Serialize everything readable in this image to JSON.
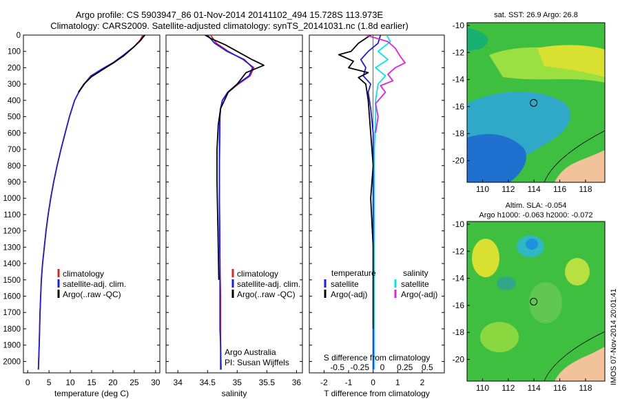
{
  "header": {
    "title_line1": "Argo profile: CS 5903947_86 01-Nov-2014 20141102_494 15.728S 113.973E",
    "title_line2": "Climatology: CARS2009. Satellite-adjusted climatology: synTS_20141031.nc (1.8d earlier)"
  },
  "colors": {
    "climatology": "#dd2222",
    "satellite": "#1a1aee",
    "argo": "#000000",
    "satellite_salinity": "#00e5e5",
    "argo_salinity": "#e020e0",
    "land": "#f2c29a"
  },
  "chart_data": [
    {
      "type": "line",
      "id": "temperature",
      "xlabel": "temperature (deg C)",
      "xlim": [
        -1,
        31
      ],
      "xticks": [
        0,
        5,
        10,
        15,
        20,
        25,
        30
      ],
      "ylim": [
        2070,
        0
      ],
      "yticks": [
        0,
        100,
        200,
        300,
        400,
        500,
        600,
        700,
        800,
        900,
        1000,
        1100,
        1200,
        1300,
        1400,
        1500,
        1600,
        1700,
        1800,
        1900,
        2000
      ],
      "legend": [
        "climatology",
        "satellite-adj. clim.",
        "Argo(..raw -QC)"
      ],
      "legend_placement": "lower-center",
      "series": [
        {
          "name": "climatology",
          "color": "#dd2222",
          "x": [
            27.0,
            26.4,
            25.0,
            22.8,
            20.2,
            17.5,
            14.8,
            13.2,
            12.0,
            11.0,
            9.8,
            8.8,
            7.8,
            6.9,
            6.1,
            5.4,
            4.8,
            4.3,
            3.9,
            3.5,
            3.2,
            2.9,
            2.7,
            2.5
          ],
          "y": [
            0,
            30,
            70,
            120,
            170,
            210,
            250,
            300,
            350,
            400,
            500,
            600,
            700,
            800,
            900,
            1000,
            1100,
            1200,
            1300,
            1400,
            1500,
            1700,
            1900,
            2050
          ]
        },
        {
          "name": "satellite-adj. clim.",
          "color": "#1a1aee",
          "x": [
            27.3,
            26.6,
            25.0,
            22.6,
            20.0,
            17.3,
            14.9,
            13.3,
            12.0,
            11.0,
            9.8,
            8.8,
            7.8,
            6.9,
            6.1,
            5.4,
            4.8,
            4.3,
            3.9,
            3.5,
            3.2,
            2.9,
            2.7,
            2.5
          ],
          "y": [
            0,
            30,
            70,
            120,
            170,
            210,
            250,
            300,
            350,
            400,
            500,
            600,
            700,
            800,
            900,
            1000,
            1100,
            1200,
            1300,
            1400,
            1500,
            1700,
            1900,
            2050
          ]
        },
        {
          "name": "Argo(..raw -QC)",
          "color": "#000000",
          "x": [
            27.5,
            26.2,
            24.6,
            22.4,
            19.8,
            17.4,
            15.0,
            13.2,
            11.9
          ],
          "y": [
            0,
            40,
            80,
            130,
            175,
            215,
            255,
            300,
            350
          ]
        }
      ]
    },
    {
      "type": "line",
      "id": "salinity",
      "xlabel": "salinity",
      "xlim": [
        33.8,
        36.1
      ],
      "xticks": [
        34,
        34.5,
        35,
        35.5,
        36
      ],
      "ylim": [
        2070,
        0
      ],
      "legend": [
        "climatology",
        "satellite-adj. clim.",
        "Argo(..raw -QC)"
      ],
      "legend_placement": "lower-center",
      "annotation": [
        "Argo Australia",
        "PI: Susan Wijffels"
      ],
      "series": [
        {
          "name": "climatology",
          "color": "#dd2222",
          "x": [
            34.55,
            34.65,
            34.85,
            35.1,
            35.28,
            35.22,
            35.02,
            34.85,
            34.75,
            34.72,
            34.71,
            34.71,
            34.7,
            34.7,
            34.71,
            34.71,
            34.72,
            34.72,
            34.72,
            34.73
          ],
          "y": [
            0,
            50,
            100,
            150,
            200,
            250,
            300,
            350,
            400,
            450,
            500,
            600,
            800,
            1000,
            1200,
            1400,
            1600,
            1800,
            1900,
            2050
          ]
        },
        {
          "name": "satellite-adj. clim.",
          "color": "#1a1aee",
          "x": [
            34.5,
            34.62,
            34.83,
            35.12,
            35.26,
            35.2,
            35.0,
            34.84,
            34.75,
            34.72,
            34.71,
            34.7,
            34.7,
            34.7,
            34.7,
            34.71,
            34.71,
            34.71,
            34.72,
            34.72
          ],
          "y": [
            0,
            50,
            100,
            150,
            200,
            250,
            300,
            350,
            400,
            450,
            500,
            600,
            800,
            1000,
            1200,
            1400,
            1600,
            1800,
            1900,
            2050
          ]
        },
        {
          "name": "Argo(..raw -QC)",
          "color": "#000000",
          "x": [
            34.46,
            34.55,
            34.8,
            35.0,
            35.25,
            35.45,
            35.15,
            35.0,
            34.85,
            34.72,
            34.68,
            34.66,
            34.66,
            34.67,
            34.68,
            34.69
          ],
          "y": [
            0,
            20,
            60,
            100,
            150,
            185,
            230,
            300,
            350,
            450,
            550,
            700,
            900,
            1100,
            1300,
            1500
          ]
        }
      ]
    },
    {
      "type": "line",
      "id": "difference",
      "xlabel": "T difference from climatology",
      "xlabel_top": "S difference from climatology",
      "xlim": [
        -2.6,
        2.9
      ],
      "xticks": [
        -2,
        -1,
        0,
        1,
        2
      ],
      "xticks_top": [
        -0.5,
        -0.25,
        0,
        0.25,
        0.5
      ],
      "ylim": [
        2070,
        0
      ],
      "legend_left_title": "temperature",
      "legend_right_title": "salinity",
      "legend_left": [
        "satellite",
        "Argo(-adj)"
      ],
      "legend_right": [
        "satellite",
        "Argo(-adj)"
      ],
      "series": [
        {
          "name": "temperature satellite",
          "color": "#1a1aee",
          "x": [
            0.3,
            0.2,
            -0.2,
            -0.5,
            -0.3,
            -0.4,
            -0.1,
            -0.2,
            -0.1,
            0,
            0,
            0,
            0,
            0
          ],
          "y": [
            0,
            50,
            100,
            150,
            200,
            250,
            300,
            350,
            450,
            600,
            900,
            1200,
            1600,
            2050
          ]
        },
        {
          "name": "temperature Argo(-adj)",
          "color": "#000000",
          "x": [
            -0.1,
            -0.6,
            -0.9,
            -1.4,
            -0.8,
            -1.0,
            -0.2,
            -0.6,
            -0.3,
            -0.2,
            -0.1,
            0,
            -0.1,
            0,
            0,
            0
          ],
          "y": [
            0,
            50,
            100,
            120,
            160,
            200,
            230,
            260,
            300,
            400,
            600,
            800,
            1000,
            1300,
            1600,
            1800
          ]
        },
        {
          "name": "salinity satellite",
          "color": "#00e5e5",
          "x": [
            0.55,
            0.7,
            0.2,
            0.6,
            0.1,
            0.5,
            0.2,
            0.1,
            0.1,
            0.05,
            0.05,
            0.05,
            0.05
          ],
          "y": [
            0,
            40,
            100,
            150,
            200,
            250,
            300,
            400,
            500,
            700,
            1000,
            1500,
            2050
          ]
        },
        {
          "name": "salinity Argo(-adj)",
          "color": "#e020e0",
          "x": [
            -0.3,
            0.6,
            0.9,
            1.1,
            1.3,
            0.9,
            0.6,
            0.8,
            0.3,
            0.5,
            0.1,
            0.2,
            0.1
          ],
          "y": [
            0,
            40,
            80,
            130,
            170,
            200,
            240,
            280,
            310,
            350,
            420,
            500,
            600
          ]
        }
      ]
    },
    {
      "type": "heatmap",
      "id": "sst_map",
      "title": "sat. SST: 26.9 Argo: 26.8",
      "xlim": [
        108.8,
        119.5
      ],
      "ylim": [
        -21.6,
        -9.8
      ],
      "xticks": [
        110,
        112,
        114,
        116,
        118
      ],
      "yticks": [
        -10,
        -12,
        -14,
        -16,
        -18,
        -20
      ],
      "marker": {
        "lon": 113.973,
        "lat": -15.728
      }
    },
    {
      "type": "heatmap",
      "id": "sla_map",
      "title": "Altim. SLA: -0.054",
      "subtitle": "Argo h1000: -0.063 h2000: -0.072",
      "xlim": [
        108.8,
        119.5
      ],
      "ylim": [
        -21.6,
        -9.8
      ],
      "xticks": [
        110,
        112,
        114,
        116,
        118
      ],
      "yticks": [
        -10,
        -12,
        -14,
        -16,
        -18,
        -20
      ],
      "marker": {
        "lon": 113.973,
        "lat": -15.728
      },
      "side_label": "IMOS 07-Nov-2014 20:01:41"
    }
  ]
}
